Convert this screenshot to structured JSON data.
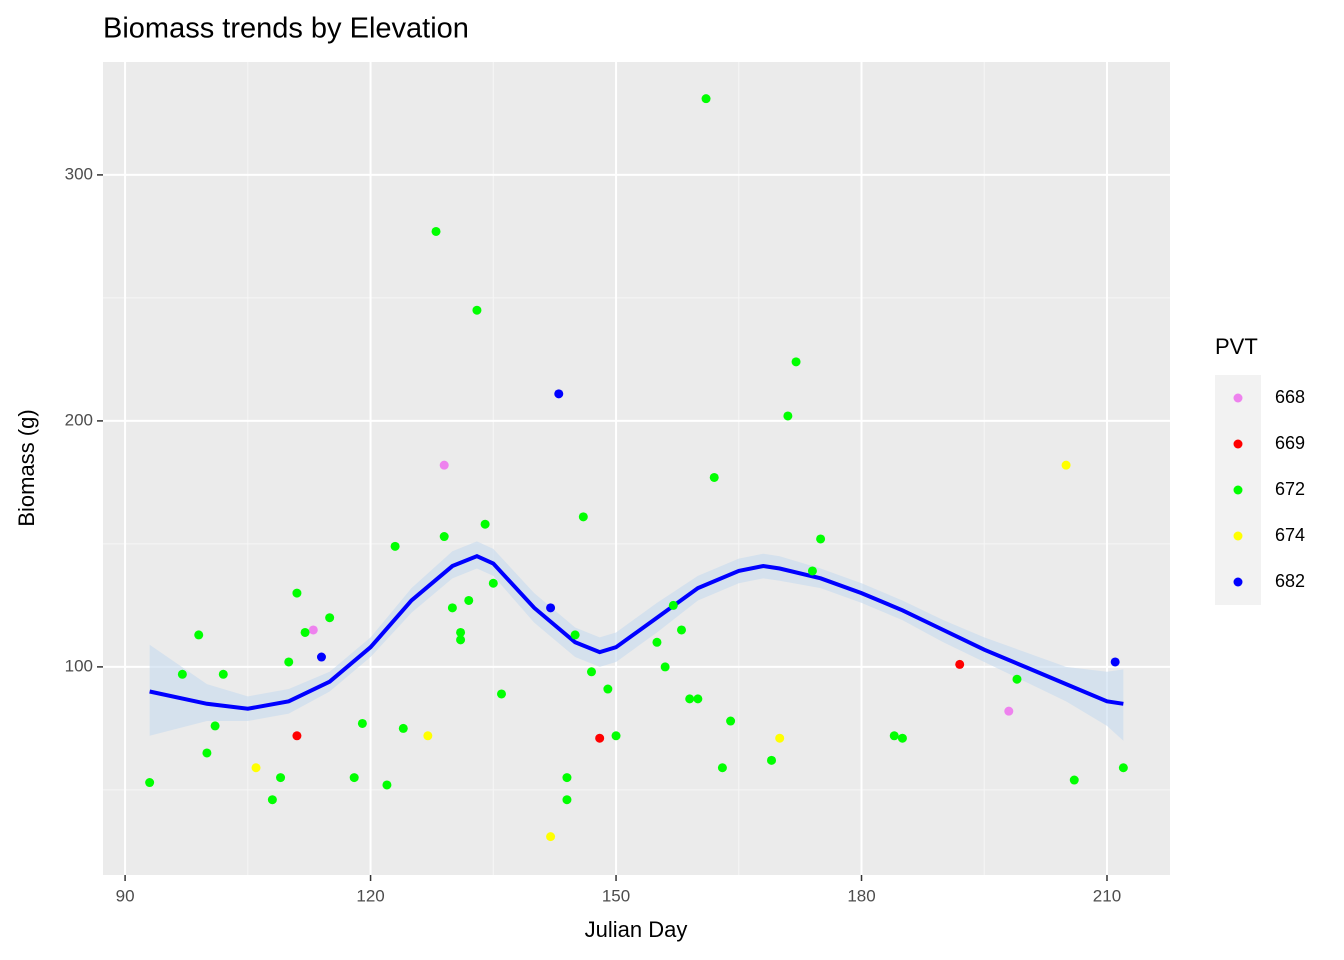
{
  "chart_data": {
    "type": "scatter",
    "title": "Biomass trends by Elevation",
    "x_label": "Julian Day",
    "y_label": "Biomass (g)",
    "legend_title": "PVT",
    "legend_position": "right",
    "grid": true,
    "xlim": [
      87.3,
      217.7
    ],
    "ylim": [
      15.4,
      345.9
    ],
    "xticks": [
      90,
      120,
      150,
      180,
      210
    ],
    "yticks": [
      100,
      200,
      300
    ],
    "xminor": [
      105,
      135,
      165,
      195
    ],
    "yminor": [
      50,
      150,
      250
    ],
    "series": [
      {
        "name": "668",
        "color": "#ee82ee",
        "x": [
          113,
          129,
          198
        ],
        "values": [
          115,
          182,
          82
        ]
      },
      {
        "name": "669",
        "color": "#ff0000",
        "x": [
          111,
          148,
          192
        ],
        "values": [
          72,
          71,
          101
        ]
      },
      {
        "name": "672",
        "color": "#00ff00",
        "x": [
          93,
          97,
          99,
          100,
          101,
          102,
          109,
          108,
          110,
          111,
          112,
          115,
          118,
          119,
          122,
          123,
          124,
          128,
          129,
          130,
          131,
          131,
          132,
          133,
          134,
          135,
          136,
          144,
          144,
          145,
          146,
          147,
          149,
          150,
          155,
          156,
          157,
          158,
          159,
          160,
          161,
          162,
          163,
          164,
          169,
          171,
          172,
          174,
          175,
          184,
          185,
          199,
          206,
          212
        ],
        "values": [
          53,
          97,
          113,
          65,
          76,
          97,
          55,
          46,
          102,
          130,
          114,
          120,
          55,
          77,
          52,
          149,
          75,
          277,
          153,
          124,
          114,
          111,
          127,
          245,
          158,
          134,
          89,
          55,
          46,
          113,
          161,
          98,
          91,
          72,
          110,
          100,
          125,
          115,
          87,
          87,
          331,
          177,
          59,
          78,
          62,
          202,
          224,
          139,
          152,
          72,
          71,
          95,
          54,
          59
        ]
      },
      {
        "name": "674",
        "color": "#ffff00",
        "x": [
          106,
          127,
          142,
          170,
          205
        ],
        "values": [
          59,
          72,
          31,
          71,
          182
        ]
      },
      {
        "name": "682",
        "color": "#0000ff",
        "x": [
          114,
          142,
          143,
          211
        ],
        "values": [
          104,
          124,
          211,
          102
        ]
      }
    ],
    "smooth": {
      "color": "#0000ff",
      "band_color": "#c6dbef",
      "x": [
        93,
        100,
        105,
        110,
        115,
        120,
        125,
        130,
        133,
        135,
        140,
        145,
        148,
        150,
        155,
        160,
        165,
        168,
        170,
        175,
        180,
        185,
        190,
        195,
        200,
        205,
        210,
        212
      ],
      "values": [
        90,
        85,
        83,
        86,
        94,
        108,
        127,
        141,
        145,
        142,
        124,
        110,
        106,
        108,
        120,
        132,
        139,
        141,
        140,
        136,
        130,
        123,
        115,
        107,
        100,
        93,
        86,
        85
      ],
      "lower": [
        72,
        78,
        78,
        81,
        90,
        104,
        122,
        136,
        140,
        137,
        118,
        104,
        100,
        102,
        114,
        127,
        134,
        136,
        135,
        132,
        126,
        119,
        110,
        102,
        94,
        86,
        76,
        70
      ],
      "upper": [
        109,
        93,
        88,
        91,
        98,
        112,
        132,
        147,
        151,
        148,
        130,
        116,
        112,
        114,
        126,
        137,
        144,
        146,
        145,
        140,
        134,
        127,
        119,
        112,
        106,
        100,
        98,
        99
      ]
    }
  }
}
